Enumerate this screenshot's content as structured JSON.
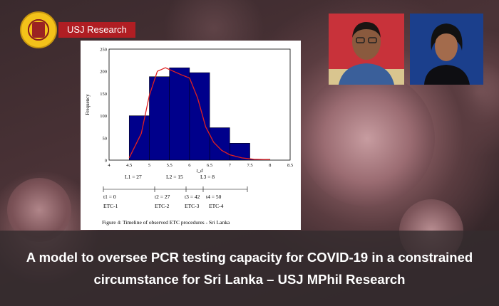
{
  "brand": {
    "tag_label": "USJ Research",
    "accent_color": "#b01e23",
    "logo_icon": "university-seal-icon"
  },
  "figure": {
    "ylabel": "Frequency",
    "xlabel": "t_d",
    "yticks": [
      "0",
      "50",
      "100",
      "150",
      "200",
      "250"
    ],
    "xticks": [
      "4",
      "4.5",
      "5",
      "5.5",
      "6",
      "6.5",
      "7",
      "7.5",
      "8",
      "8.5"
    ],
    "timeline": {
      "lengths": [
        "L1 = 27",
        "L2 = 15",
        "L3 = 8"
      ],
      "points": [
        "t1 = 0",
        "t2 = 27",
        "t3 = 42",
        "t4 = 50"
      ],
      "stages": [
        "ETC-1",
        "ETC-2",
        "ETC-3",
        "ETC-4"
      ]
    },
    "caption": "Figure 4:  Timeline of observed ETC procedures - Sri Lanka"
  },
  "chart_data": {
    "type": "bar",
    "bin_edges": [
      4.5,
      5.0,
      5.5,
      6.0,
      6.5,
      7.0,
      7.5,
      8.0
    ],
    "values": [
      100,
      188,
      208,
      197,
      73,
      38,
      2
    ],
    "xlim": [
      4,
      8.5
    ],
    "ylim": [
      0,
      250
    ],
    "ylabel": "Frequency",
    "xlabel": "t_d",
    "bar_color": "#00008b",
    "curve_color": "#e02020",
    "curve": {
      "x": [
        4.5,
        4.8,
        5.0,
        5.2,
        5.4,
        5.6,
        5.8,
        6.0,
        6.2,
        6.4,
        6.6,
        6.8,
        7.0,
        7.3,
        7.6,
        8.0
      ],
      "y": [
        5,
        60,
        145,
        200,
        208,
        200,
        192,
        185,
        140,
        75,
        40,
        22,
        12,
        5,
        2,
        1
      ]
    }
  },
  "title": "A model to oversee PCR testing capacity for COVID-19 in a constrained circumstance for Sri Lanka – USJ MPhil Research"
}
